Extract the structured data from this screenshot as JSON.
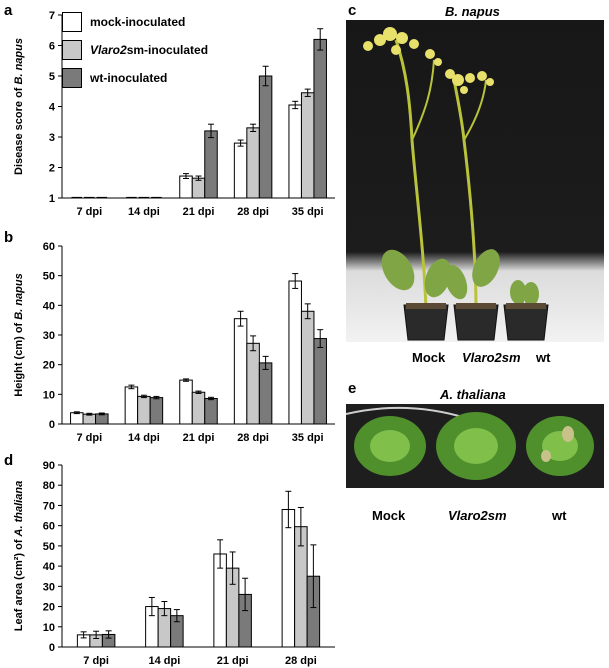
{
  "panels": {
    "a": "a",
    "b": "b",
    "c": "c",
    "d": "d",
    "e": "e"
  },
  "legend": [
    {
      "label_italic": "",
      "label_rest": "mock-inoculated",
      "color": "#ffffff"
    },
    {
      "label_italic": "Vlaro2",
      "label_rest": "sm-inoculated",
      "color": "#c8c8c8"
    },
    {
      "label_italic": "",
      "label_rest": "wt-inoculated",
      "color": "#7a7a7a"
    }
  ],
  "photos": {
    "c_title": "B. napus",
    "c_labels": {
      "mock": "Mock",
      "vlaro2sm": "Vlaro2sm",
      "wt": "wt"
    },
    "e_title": "A. thaliana",
    "e_labels": {
      "mock": "Mock",
      "vlaro2sm": "Vlaro2sm",
      "wt": "wt"
    }
  },
  "chart_data": [
    {
      "id": "a",
      "type": "bar",
      "ylabel_prefix": "Disease score of ",
      "ylabel_italic": "B. napus",
      "ylim": [
        1,
        7
      ],
      "yticks": [
        1,
        2,
        3,
        4,
        5,
        6,
        7
      ],
      "categories": [
        "7 dpi",
        "14 dpi",
        "21 dpi",
        "28 dpi",
        "35 dpi"
      ],
      "series": [
        {
          "name": "mock-inoculated",
          "values": [
            1,
            1,
            1.72,
            2.8,
            4.05
          ],
          "errors": [
            0,
            0,
            0.08,
            0.1,
            0.12
          ]
        },
        {
          "name": "Vlaro2sm-inoculated",
          "values": [
            1,
            1,
            1.65,
            3.3,
            4.45
          ],
          "errors": [
            0,
            0,
            0.07,
            0.12,
            0.12
          ]
        },
        {
          "name": "wt-inoculated",
          "values": [
            1,
            1,
            3.2,
            5.0,
            6.2
          ],
          "errors": [
            0,
            0,
            0.22,
            0.32,
            0.35
          ]
        }
      ]
    },
    {
      "id": "b",
      "type": "bar",
      "ylabel_prefix": "Height (cm) of ",
      "ylabel_italic": "B. napus",
      "ylim": [
        0,
        60
      ],
      "yticks": [
        0,
        10,
        20,
        30,
        40,
        50,
        60
      ],
      "categories": [
        "7 dpi",
        "14 dpi",
        "21 dpi",
        "28 dpi",
        "35 dpi"
      ],
      "series": [
        {
          "name": "mock-inoculated",
          "values": [
            3.8,
            12.5,
            14.8,
            35.5,
            48.2
          ],
          "errors": [
            0.3,
            0.6,
            0.4,
            2.5,
            2.5
          ]
        },
        {
          "name": "Vlaro2sm-inoculated",
          "values": [
            3.3,
            9.3,
            10.7,
            27.2,
            38.0
          ],
          "errors": [
            0.3,
            0.4,
            0.4,
            2.5,
            2.5
          ]
        },
        {
          "name": "wt-inoculated",
          "values": [
            3.4,
            8.9,
            8.6,
            20.6,
            28.8
          ],
          "errors": [
            0.3,
            0.4,
            0.4,
            2.2,
            3.0
          ]
        }
      ]
    },
    {
      "id": "d",
      "type": "bar",
      "ylabel_prefix": "Leaf area (cm²) of ",
      "ylabel_italic": "A. thaliana",
      "ylim": [
        0,
        90
      ],
      "yticks": [
        0,
        10,
        20,
        30,
        40,
        50,
        60,
        70,
        80,
        90
      ],
      "categories": [
        "7 dpi",
        "14 dpi",
        "21 dpi",
        "28 dpi"
      ],
      "series": [
        {
          "name": "mock-inoculated",
          "values": [
            6,
            20,
            46,
            68
          ],
          "errors": [
            1.5,
            4.5,
            7,
            9
          ]
        },
        {
          "name": "Vlaro2sm-inoculated",
          "values": [
            6,
            19,
            39,
            59.5
          ],
          "errors": [
            1.8,
            3.5,
            8,
            9.5
          ]
        },
        {
          "name": "wt-inoculated",
          "values": [
            6.2,
            15.5,
            26,
            35
          ],
          "errors": [
            1.8,
            3,
            8,
            15.5
          ]
        }
      ]
    }
  ]
}
